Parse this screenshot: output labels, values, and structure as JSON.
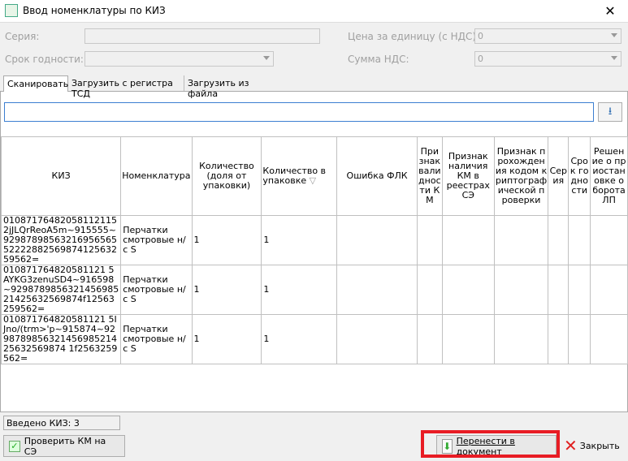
{
  "window": {
    "title": "Ввод номенклатуры по КИЗ"
  },
  "form": {
    "series_label": "Серия:",
    "series_value": "",
    "expiry_label": "Срок годности:",
    "expiry_value": "",
    "price_label": "Цена за единицу (с НДС):",
    "price_value": "0",
    "vat_label": "Сумма НДС:",
    "vat_value": "0"
  },
  "tabs": [
    {
      "label": "Сканировать",
      "active": true
    },
    {
      "label": "Загрузить с регистра ТСД"
    },
    {
      "label": "Загрузить из файла"
    }
  ],
  "scan": {
    "value": ""
  },
  "table": {
    "columns": [
      "КИЗ",
      "Номенклатура",
      "Количество (доля от упаковки)",
      "Количество в упаковке",
      "Ошибка ФЛК",
      "Признак валидности КМ",
      "Признак наличия КМ в реестрах СЭ",
      "Признак прохождения кодом криптографической проверки",
      "Серия",
      "Срок годности",
      "Решение о приостановке оборота ЛП"
    ],
    "rows": [
      [
        "010871764820581121152jJLQrReoA5m~915555~929878985632169565655222288256987412563259562=",
        "Перчатки смотровые н/с S",
        "1",
        "1",
        "",
        "",
        "",
        "",
        "",
        "",
        ""
      ],
      [
        "010871764820581121 5AYKG3zenuSD4~916598~929878985632145698521425632569874f12563259562=",
        "Перчатки смотровые н/с S",
        "1",
        "1",
        "",
        "",
        "",
        "",
        "",
        "",
        ""
      ],
      [
        "010871764820581121 5IJno/(trm>'p~915874~929878985632145698521425632569874 1f2563259562=",
        "Перчатки смотровые н/с S",
        "1",
        "1",
        "",
        "",
        "",
        "",
        "",
        "",
        ""
      ]
    ]
  },
  "status": {
    "text": "Введено КИЗ: 3"
  },
  "buttons": {
    "check": "Проверить КМ на СЭ",
    "transfer": "Перенести в документ",
    "close": "Закрыть"
  }
}
